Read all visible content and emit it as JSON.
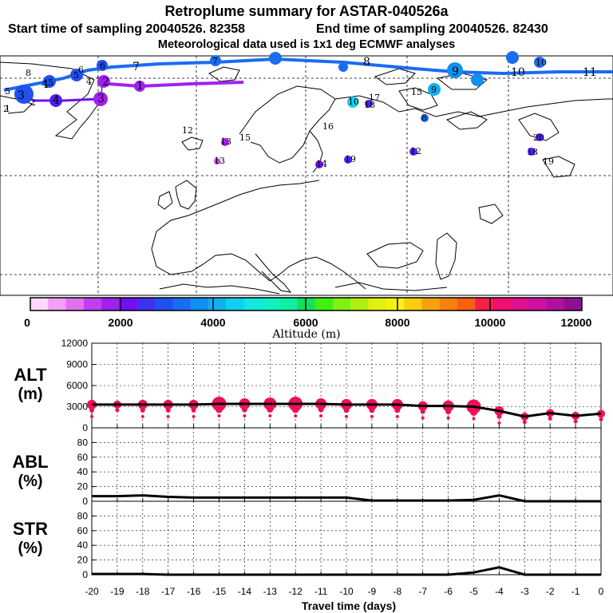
{
  "header": {
    "title": "Retroplume summary for ASTAR-040526a",
    "start": "Start time of sampling 20040526. 82358",
    "end": "End time of sampling 20040526. 82430",
    "met": "Meteorological data used is 1x1 deg ECMWF analyses"
  },
  "colors": {
    "plume_blue": "#1a6cf0",
    "plume_purple": "#a020f0",
    "alt_marker": "#f0105a",
    "scale": [
      "#ffd8ff",
      "#f0a0f8",
      "#e070f0",
      "#c040f0",
      "#a020f0",
      "#7010f0",
      "#4030f0",
      "#2050f0",
      "#1a6cf0",
      "#1090f0",
      "#10b0f0",
      "#10d0f0",
      "#10e8e0",
      "#10f0c0",
      "#10f0a0",
      "#10e060",
      "#40f010",
      "#80f010",
      "#b0f010",
      "#e0f010",
      "#f8f010",
      "#f8d010",
      "#f8a010",
      "#f88010",
      "#f86010",
      "#f8204a",
      "#f01070",
      "#e01090",
      "#d010a0",
      "#b010a0",
      "#901090"
    ]
  },
  "map": {
    "blue_labels": [
      "7",
      "7",
      "8",
      "9",
      "10",
      "11",
      "10",
      "6",
      "5",
      "4",
      "3",
      "2"
    ],
    "purple_labels": [
      "1",
      "2",
      "3",
      "4"
    ],
    "point_labels": [
      "8",
      "6",
      "5",
      "5",
      "4",
      "2",
      "1",
      "10",
      "17",
      "18",
      "15",
      "9",
      "8",
      "12",
      "16",
      "13",
      "13",
      "15",
      "14",
      "19",
      "12",
      "20",
      "18",
      "19"
    ]
  },
  "colorbar": {
    "label": "Altitude (m)",
    "ticks": [
      "0",
      "2000",
      "4000",
      "6000",
      "8000",
      "10000",
      "12000"
    ]
  },
  "chart_data": [
    {
      "type": "line",
      "panel": "ALT",
      "ylabel_line1": "ALT",
      "ylabel_line2": "(m)",
      "ylim": [
        0,
        12000
      ],
      "yticks": [
        "0",
        "3000",
        "6000",
        "9000",
        "12000"
      ],
      "x": [
        -20,
        -19,
        -18,
        -17,
        -16,
        -15,
        -14,
        -13,
        -12,
        -11,
        -10,
        -9,
        -8,
        -7,
        -6,
        -5,
        -4,
        -3,
        -2,
        -1,
        0
      ],
      "values": [
        3300,
        3300,
        3300,
        3300,
        3300,
        3400,
        3400,
        3400,
        3400,
        3400,
        3300,
        3300,
        3300,
        3100,
        3100,
        3000,
        2400,
        1600,
        2100,
        1700,
        2000
      ],
      "marker_size": [
        6,
        5,
        6,
        6,
        6,
        9,
        7,
        8,
        9,
        7,
        7,
        7,
        7,
        6,
        7,
        9,
        6,
        5,
        5,
        5,
        5
      ]
    },
    {
      "type": "line",
      "panel": "ABL",
      "ylabel_line1": "ABL",
      "ylabel_line2": "(%)",
      "ylim": [
        0,
        100
      ],
      "yticks": [
        "0",
        "20",
        "40",
        "60",
        "80"
      ],
      "x": [
        -20,
        -19,
        -18,
        -17,
        -16,
        -15,
        -14,
        -13,
        -12,
        -11,
        -10,
        -9,
        -8,
        -7,
        -6,
        -5,
        -4,
        -3,
        -2,
        -1,
        0
      ],
      "values": [
        7,
        7,
        8,
        6,
        5,
        5,
        5,
        5,
        5,
        5,
        5,
        1,
        1,
        1,
        1,
        2,
        8,
        0,
        0,
        0,
        0
      ]
    },
    {
      "type": "line",
      "panel": "STR",
      "ylabel_line1": "STR",
      "ylabel_line2": "(%)",
      "ylim": [
        0,
        100
      ],
      "yticks": [
        "0",
        "20",
        "40",
        "60",
        "80"
      ],
      "x": [
        -20,
        -19,
        -18,
        -17,
        -16,
        -15,
        -14,
        -13,
        -12,
        -11,
        -10,
        -9,
        -8,
        -7,
        -6,
        -5,
        -4,
        -3,
        -2,
        -1,
        0
      ],
      "values": [
        1,
        1,
        1,
        0,
        0,
        0,
        0,
        0,
        0,
        0,
        0,
        0,
        0,
        0,
        0,
        3,
        10,
        0,
        0,
        0,
        0
      ],
      "xlabel": "Travel time (days)",
      "xticks": [
        "-20",
        "-19",
        "-18",
        "-17",
        "-16",
        "-15",
        "-14",
        "-13",
        "-12",
        "-11",
        "-10",
        "-9",
        "-8",
        "-7",
        "-6",
        "-5",
        "-4",
        "-3",
        "-2",
        "-1",
        "0"
      ]
    }
  ]
}
